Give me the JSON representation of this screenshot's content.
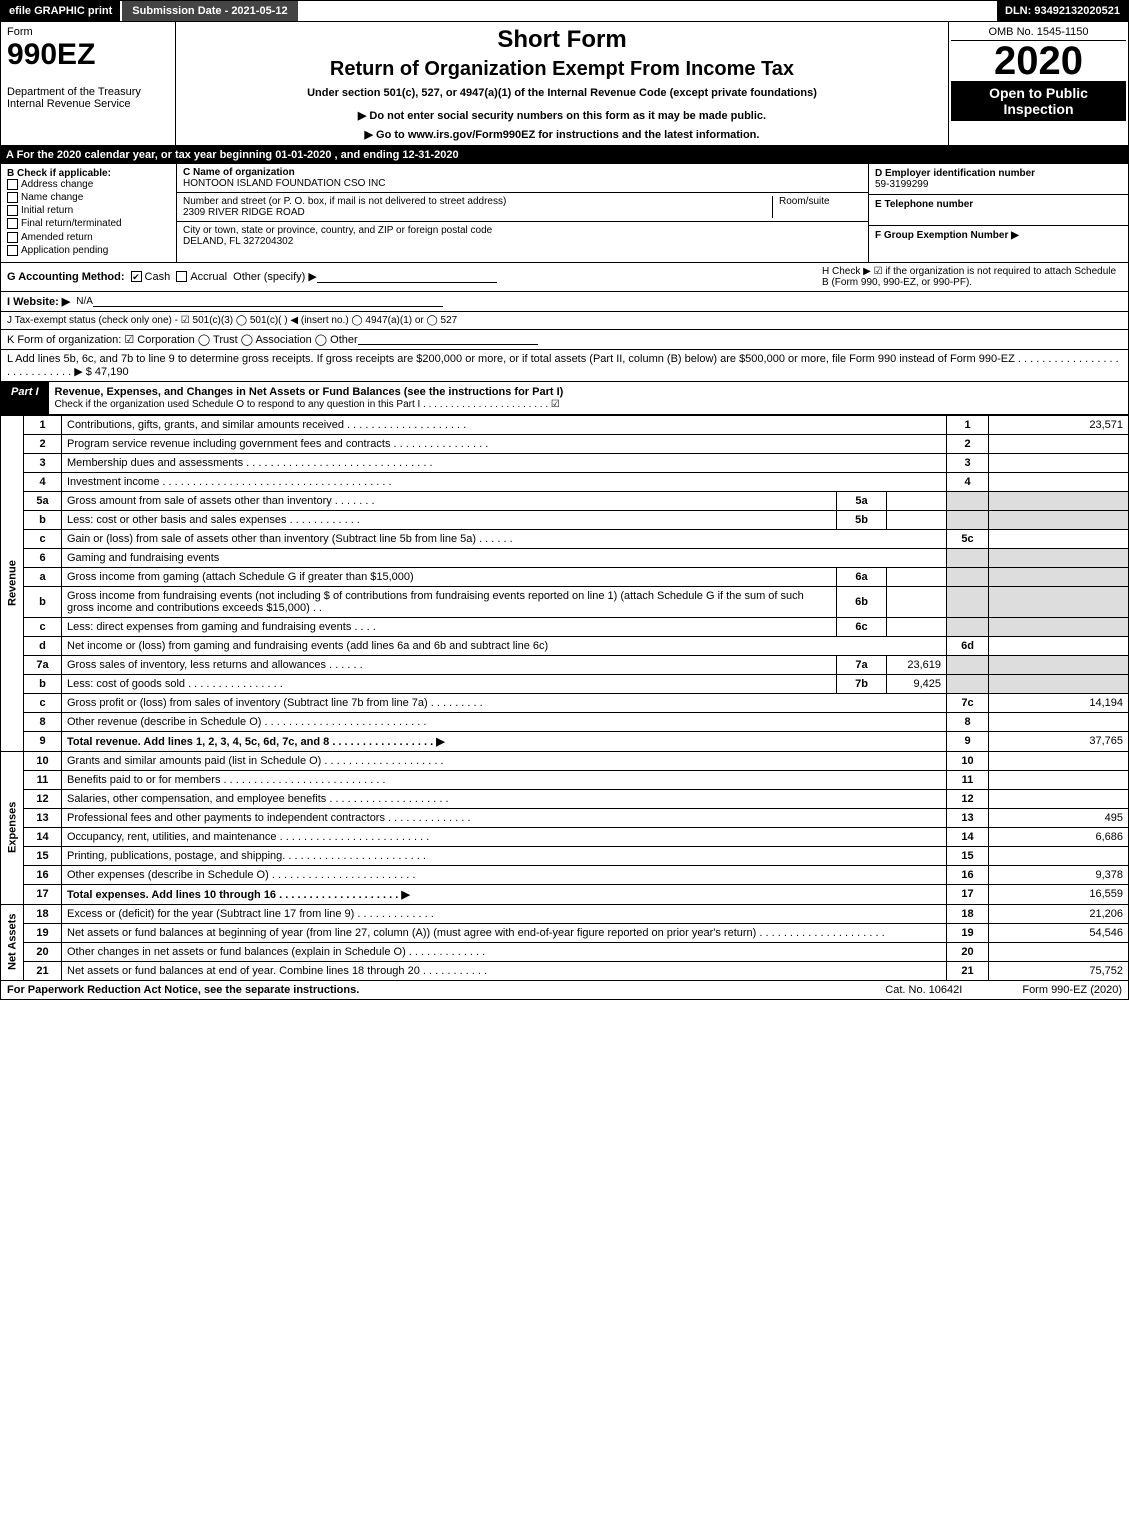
{
  "topbar": {
    "efile": "efile GRAPHIC print",
    "submission": "Submission Date - 2021-05-12",
    "dln": "DLN: 93492132020521"
  },
  "header": {
    "form_label": "Form",
    "form_no": "990EZ",
    "dept": "Department of the Treasury",
    "irs": "Internal Revenue Service",
    "short_form": "Short Form",
    "title": "Return of Organization Exempt From Income Tax",
    "subtitle": "Under section 501(c), 527, or 4947(a)(1) of the Internal Revenue Code (except private foundations)",
    "warn": "▶ Do not enter social security numbers on this form as it may be made public.",
    "goto": "▶ Go to www.irs.gov/Form990EZ for instructions and the latest information.",
    "omb": "OMB No. 1545-1150",
    "year": "2020",
    "open": "Open to Public Inspection"
  },
  "line_a": "A For the 2020 calendar year, or tax year beginning 01-01-2020 , and ending 12-31-2020",
  "box_b": {
    "title": "B  Check if applicable:",
    "items": [
      "Address change",
      "Name change",
      "Initial return",
      "Final return/terminated",
      "Amended return",
      "Application pending"
    ]
  },
  "box_c": {
    "label_name": "C Name of organization",
    "name": "HONTOON ISLAND FOUNDATION CSO INC",
    "label_addr": "Number and street (or P. O. box, if mail is not delivered to street address)",
    "room": "Room/suite",
    "addr": "2309 RIVER RIDGE ROAD",
    "label_city": "City or town, state or province, country, and ZIP or foreign postal code",
    "city": "DELAND, FL  327204302"
  },
  "box_d": {
    "d_label": "D Employer identification number",
    "ein": "59-3199299",
    "e_label": "E Telephone number",
    "f_label": "F Group Exemption Number   ▶"
  },
  "line_g": {
    "lbl": "G Accounting Method:",
    "cash": "Cash",
    "accrual": "Accrual",
    "other": "Other (specify) ▶"
  },
  "line_h": {
    "text": "H  Check ▶ ☑ if the organization is not required to attach Schedule B (Form 990, 990-EZ, or 990-PF)."
  },
  "line_i": {
    "lbl": "I Website: ▶",
    "val": "N/A"
  },
  "line_j": {
    "text": "J Tax-exempt status (check only one) - ☑ 501(c)(3)  ◯ 501(c)(  ) ◀ (insert no.)  ◯ 4947(a)(1) or  ◯ 527"
  },
  "line_k": {
    "text": "K Form of organization:  ☑ Corporation  ◯ Trust  ◯ Association  ◯ Other"
  },
  "line_l": {
    "text": "L Add lines 5b, 6c, and 7b to line 9 to determine gross receipts. If gross receipts are $200,000 or more, or if total assets (Part II, column (B) below) are $500,000 or more, file Form 990 instead of Form 990-EZ . . . . . . . . . . . . . . . . . . . . . . . . . . . . ▶ $ 47,190"
  },
  "part1": {
    "tag": "Part I",
    "title": "Revenue, Expenses, and Changes in Net Assets or Fund Balances (see the instructions for Part I)",
    "check": "Check if the organization used Schedule O to respond to any question in this Part I . . . . . . . . . . . . . . . . . . . . . . . ☑"
  },
  "sections": {
    "revenue": "Revenue",
    "expenses": "Expenses",
    "netassets": "Net Assets"
  },
  "rows": [
    {
      "n": "1",
      "d": "Contributions, gifts, grants, and similar amounts received . . . . . . . . . . . . . . . . . . . .",
      "ref": "1",
      "amt": "23,571"
    },
    {
      "n": "2",
      "d": "Program service revenue including government fees and contracts . . . . . . . . . . . . . . . .",
      "ref": "2",
      "amt": ""
    },
    {
      "n": "3",
      "d": "Membership dues and assessments . . . . . . . . . . . . . . . . . . . . . . . . . . . . . . .",
      "ref": "3",
      "amt": ""
    },
    {
      "n": "4",
      "d": "Investment income . . . . . . . . . . . . . . . . . . . . . . . . . . . . . . . . . . . . . .",
      "ref": "4",
      "amt": ""
    },
    {
      "n": "5a",
      "d": "Gross amount from sale of assets other than inventory . . . . . . .",
      "mid": "5a",
      "mval": "",
      "shadeRight": true
    },
    {
      "n": "b",
      "d": "Less: cost or other basis and sales expenses . . . . . . . . . . . .",
      "mid": "5b",
      "mval": "",
      "shadeRight": true
    },
    {
      "n": "c",
      "d": "Gain or (loss) from sale of assets other than inventory (Subtract line 5b from line 5a) . . . . . .",
      "ref": "5c",
      "amt": ""
    },
    {
      "n": "6",
      "d": "Gaming and fundraising events",
      "shadeRight": true
    },
    {
      "n": "a",
      "d": "Gross income from gaming (attach Schedule G if greater than $15,000)",
      "mid": "6a",
      "mval": "",
      "shadeRight": true
    },
    {
      "n": "b",
      "d": "Gross income from fundraising events (not including $                   of contributions from fundraising events reported on line 1) (attach Schedule G if the sum of such gross income and contributions exceeds $15,000)   . .",
      "mid": "6b",
      "mval": "",
      "shadeRight": true
    },
    {
      "n": "c",
      "d": "Less: direct expenses from gaming and fundraising events   . . . .",
      "mid": "6c",
      "mval": "",
      "shadeRight": true
    },
    {
      "n": "d",
      "d": "Net income or (loss) from gaming and fundraising events (add lines 6a and 6b and subtract line 6c)",
      "ref": "6d",
      "amt": ""
    },
    {
      "n": "7a",
      "d": "Gross sales of inventory, less returns and allowances . . . . . .",
      "mid": "7a",
      "mval": "23,619",
      "shadeRight": true
    },
    {
      "n": "b",
      "d": "Less: cost of goods sold       . . . . . . . . . . . . . . . .",
      "mid": "7b",
      "mval": "9,425",
      "shadeRight": true
    },
    {
      "n": "c",
      "d": "Gross profit or (loss) from sales of inventory (Subtract line 7b from line 7a) . . . . . . . . .",
      "ref": "7c",
      "amt": "14,194"
    },
    {
      "n": "8",
      "d": "Other revenue (describe in Schedule O) . . . . . . . . . . . . . . . . . . . . . . . . . . .",
      "ref": "8",
      "amt": ""
    },
    {
      "n": "9",
      "d": "Total revenue. Add lines 1, 2, 3, 4, 5c, 6d, 7c, and 8  . . . . . . . . . . . . . . . . .    ▶",
      "ref": "9",
      "amt": "37,765",
      "bold": true
    },
    {
      "sec": "expenses"
    },
    {
      "n": "10",
      "d": "Grants and similar amounts paid (list in Schedule O) . . . . . . . . . . . . . . . . . . . .",
      "ref": "10",
      "amt": ""
    },
    {
      "n": "11",
      "d": "Benefits paid to or for members     . . . . . . . . . . . . . . . . . . . . . . . . . . .",
      "ref": "11",
      "amt": ""
    },
    {
      "n": "12",
      "d": "Salaries, other compensation, and employee benefits . . . . . . . . . . . . . . . . . . . .",
      "ref": "12",
      "amt": ""
    },
    {
      "n": "13",
      "d": "Professional fees and other payments to independent contractors . . . . . . . . . . . . . .",
      "ref": "13",
      "amt": "495"
    },
    {
      "n": "14",
      "d": "Occupancy, rent, utilities, and maintenance . . . . . . . . . . . . . . . . . . . . . . . . .",
      "ref": "14",
      "amt": "6,686"
    },
    {
      "n": "15",
      "d": "Printing, publications, postage, and shipping. . . . . . . . . . . . . . . . . . . . . . . .",
      "ref": "15",
      "amt": ""
    },
    {
      "n": "16",
      "d": "Other expenses (describe in Schedule O)    . . . . . . . . . . . . . . . . . . . . . . . .",
      "ref": "16",
      "amt": "9,378"
    },
    {
      "n": "17",
      "d": "Total expenses. Add lines 10 through 16    . . . . . . . . . . . . . . . . . . . .    ▶",
      "ref": "17",
      "amt": "16,559",
      "bold": true
    },
    {
      "sec": "netassets"
    },
    {
      "n": "18",
      "d": "Excess or (deficit) for the year (Subtract line 17 from line 9)       . . . . . . . . . . . . .",
      "ref": "18",
      "amt": "21,206"
    },
    {
      "n": "19",
      "d": "Net assets or fund balances at beginning of year (from line 27, column (A)) (must agree with end-of-year figure reported on prior year's return) . . . . . . . . . . . . . . . . . . . . .",
      "ref": "19",
      "amt": "54,546"
    },
    {
      "n": "20",
      "d": "Other changes in net assets or fund balances (explain in Schedule O) . . . . . . . . . . . . .",
      "ref": "20",
      "amt": ""
    },
    {
      "n": "21",
      "d": "Net assets or fund balances at end of year. Combine lines 18 through 20 . . . . . . . . . . .",
      "ref": "21",
      "amt": "75,752"
    }
  ],
  "footer": {
    "left": "For Paperwork Reduction Act Notice, see the separate instructions.",
    "mid": "Cat. No. 10642I",
    "right": "Form 990-EZ (2020)"
  }
}
